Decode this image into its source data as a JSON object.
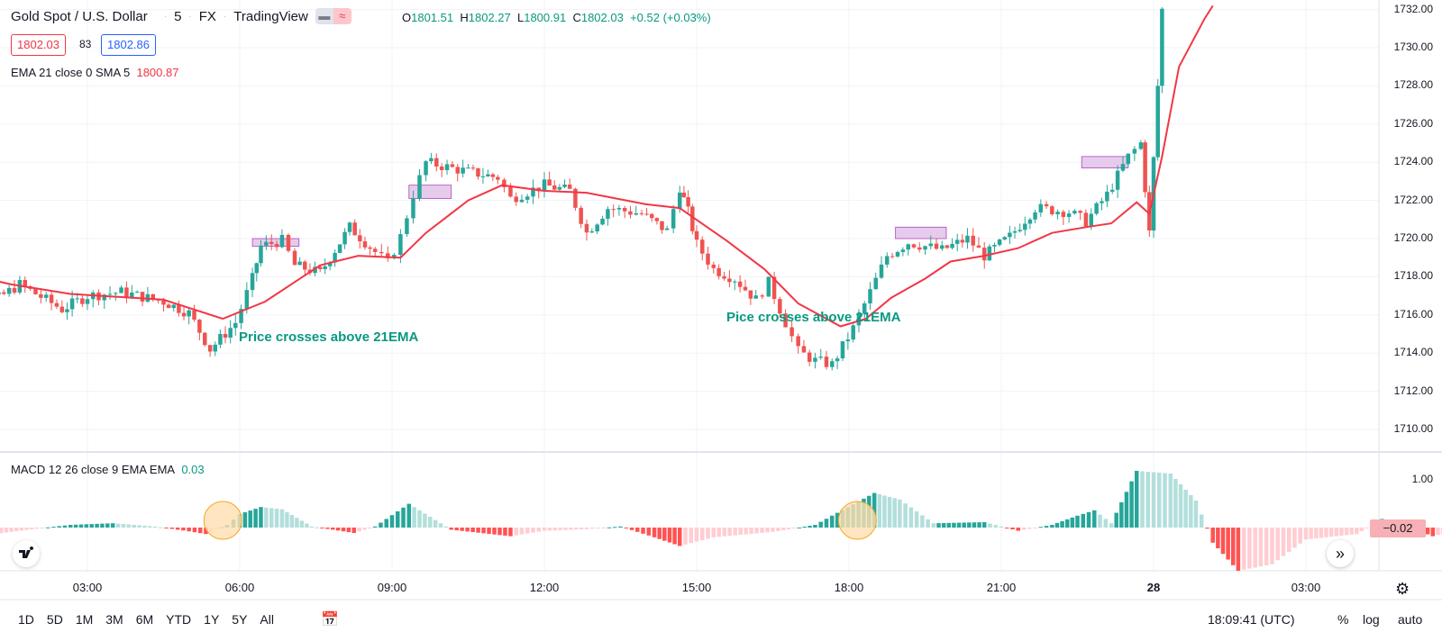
{
  "header": {
    "symbol": "Gold Spot / U.S. Dollar",
    "interval": "5",
    "exchange": "FX",
    "source": "TradingView",
    "compare_icon": "minus-icon",
    "wave_icon": "approx-icon",
    "ohlc": {
      "o_label": "O",
      "o": "1801.51",
      "h_label": "H",
      "h": "1802.27",
      "l_label": "L",
      "l": "1800.91",
      "c_label": "C",
      "c": "1802.03",
      "change": "+0.52 (+0.03%)"
    },
    "bid": "1802.03",
    "spread": "83",
    "ask": "1802.86"
  },
  "indicators": {
    "ema_label": "EMA 21 close 0 SMA 5",
    "ema_value": "1800.87",
    "macd_label": "MACD 12 26 close 9 EMA EMA",
    "macd_value": "0.03",
    "macd_last_tag": "−0.02"
  },
  "annotations": {
    "note_1": "Price crosses above 21EMA",
    "note_2": "Pice crosses above 21EMA"
  },
  "colors": {
    "up": "#26a69a",
    "down": "#ef5350",
    "ema": "#f23645",
    "macd_up_strong": "#26a69a",
    "macd_up_weak": "#b2dfdb",
    "macd_down_strong": "#ff5252",
    "macd_down_weak": "#ffcdd2",
    "highlight_box": "#e1bee7",
    "circle": "#ffe0b2"
  },
  "bottom_bar": {
    "ranges": [
      "1D",
      "5D",
      "1M",
      "3M",
      "6M",
      "YTD",
      "1Y",
      "5Y",
      "All"
    ],
    "time": "18:09:41 (UTC)",
    "percent": "%",
    "log": "log",
    "auto": "auto",
    "calendar_icon": "calendar-icon",
    "gear_icon": "gear-icon",
    "logo_icon": "tradingview-logo-icon",
    "scroll_icon": "double-chevron-right-icon"
  },
  "chart_data": {
    "type": "candlestick",
    "title": "Gold Spot / U.S. Dollar",
    "x_ticks": [
      "03:00",
      "06:00",
      "09:00",
      "12:00",
      "15:00",
      "18:00",
      "21:00",
      "28",
      "03:00"
    ],
    "y_ticks": [
      "1710.00",
      "1712.00",
      "1714.00",
      "1716.00",
      "1718.00",
      "1720.00",
      "1722.00",
      "1724.00",
      "1726.00",
      "1728.00",
      "1730.00",
      "1732.00"
    ],
    "ylim": [
      1709.2,
      1732.5
    ],
    "macd_ticks": [
      "1.00"
    ],
    "price_path": [
      {
        "t": "00:00",
        "p": 1718.0
      },
      {
        "t": "00:30",
        "p": 1717.3
      },
      {
        "t": "01:15",
        "p": 1716.9
      },
      {
        "t": "01:40",
        "p": 1717.6
      },
      {
        "t": "02:30",
        "p": 1716.3
      },
      {
        "t": "03:00",
        "p": 1717.0
      },
      {
        "t": "03:40",
        "p": 1717.2
      },
      {
        "t": "04:30",
        "p": 1716.7
      },
      {
        "t": "05:00",
        "p": 1716.1
      },
      {
        "t": "05:25",
        "p": 1714.2
      },
      {
        "t": "05:55",
        "p": 1715.6
      },
      {
        "t": "06:15",
        "p": 1717.9
      },
      {
        "t": "06:25",
        "p": 1719.6
      },
      {
        "t": "06:50",
        "p": 1719.9
      },
      {
        "t": "07:05",
        "p": 1718.6
      },
      {
        "t": "07:35",
        "p": 1718.2
      },
      {
        "t": "08:10",
        "p": 1720.6
      },
      {
        "t": "08:40",
        "p": 1719.3
      },
      {
        "t": "08:55",
        "p": 1718.7
      },
      {
        "t": "09:10",
        "p": 1720.1
      },
      {
        "t": "09:25",
        "p": 1722.3
      },
      {
        "t": "09:40",
        "p": 1724.0
      },
      {
        "t": "10:30",
        "p": 1723.5
      },
      {
        "t": "11:05",
        "p": 1723.2
      },
      {
        "t": "11:20",
        "p": 1722.1
      },
      {
        "t": "12:00",
        "p": 1722.8
      },
      {
        "t": "12:30",
        "p": 1722.5
      },
      {
        "t": "12:50",
        "p": 1720.3
      },
      {
        "t": "13:15",
        "p": 1721.6
      },
      {
        "t": "13:55",
        "p": 1721.3
      },
      {
        "t": "14:25",
        "p": 1720.4
      },
      {
        "t": "14:40",
        "p": 1722.7
      },
      {
        "t": "14:50",
        "p": 1721.4
      },
      {
        "t": "15:00",
        "p": 1719.7
      },
      {
        "t": "15:20",
        "p": 1718.4
      },
      {
        "t": "15:45",
        "p": 1717.9
      },
      {
        "t": "16:10",
        "p": 1716.8
      },
      {
        "t": "16:25",
        "p": 1717.7
      },
      {
        "t": "16:45",
        "p": 1715.6
      },
      {
        "t": "17:00",
        "p": 1714.1
      },
      {
        "t": "17:20",
        "p": 1713.6
      },
      {
        "t": "17:40",
        "p": 1713.4
      },
      {
        "t": "18:05",
        "p": 1715.3
      },
      {
        "t": "18:25",
        "p": 1717.2
      },
      {
        "t": "18:45",
        "p": 1719.1
      },
      {
        "t": "19:10",
        "p": 1719.8
      },
      {
        "t": "19:50",
        "p": 1719.4
      },
      {
        "t": "20:20",
        "p": 1720.0
      },
      {
        "t": "20:40",
        "p": 1719.1
      },
      {
        "t": "21:10",
        "p": 1720.1
      },
      {
        "t": "21:40",
        "p": 1721.6
      },
      {
        "t": "22:20",
        "p": 1721.4
      },
      {
        "t": "22:40",
        "p": 1720.9
      },
      {
        "t": "23:05",
        "p": 1722.3
      },
      {
        "t": "23:30",
        "p": 1724.3
      },
      {
        "t": "23:45",
        "p": 1725.0
      },
      {
        "t": "23:55",
        "p": 1720.3
      },
      {
        "t": "00:05",
        "p": 1728.0
      },
      {
        "t": "00:10",
        "p": 1732.0
      }
    ],
    "ema_path": [
      {
        "t": "00:00",
        "p": 1718.5
      },
      {
        "t": "01:30",
        "p": 1717.6
      },
      {
        "t": "02:40",
        "p": 1717.1
      },
      {
        "t": "04:30",
        "p": 1716.8
      },
      {
        "t": "05:40",
        "p": 1715.8
      },
      {
        "t": "06:30",
        "p": 1716.7
      },
      {
        "t": "07:35",
        "p": 1718.6
      },
      {
        "t": "08:20",
        "p": 1719.1
      },
      {
        "t": "09:10",
        "p": 1719.0
      },
      {
        "t": "09:40",
        "p": 1720.3
      },
      {
        "t": "10:30",
        "p": 1722.0
      },
      {
        "t": "11:10",
        "p": 1722.8
      },
      {
        "t": "12:00",
        "p": 1722.5
      },
      {
        "t": "12:50",
        "p": 1722.4
      },
      {
        "t": "14:00",
        "p": 1721.8
      },
      {
        "t": "14:40",
        "p": 1721.6
      },
      {
        "t": "15:35",
        "p": 1719.9
      },
      {
        "t": "16:20",
        "p": 1718.4
      },
      {
        "t": "17:00",
        "p": 1716.6
      },
      {
        "t": "17:50",
        "p": 1715.4
      },
      {
        "t": "18:20",
        "p": 1715.8
      },
      {
        "t": "18:50",
        "p": 1716.9
      },
      {
        "t": "19:30",
        "p": 1717.9
      },
      {
        "t": "20:00",
        "p": 1718.8
      },
      {
        "t": "20:40",
        "p": 1719.1
      },
      {
        "t": "21:20",
        "p": 1719.5
      },
      {
        "t": "22:00",
        "p": 1720.3
      },
      {
        "t": "22:40",
        "p": 1720.6
      },
      {
        "t": "23:10",
        "p": 1720.8
      },
      {
        "t": "23:40",
        "p": 1721.9
      },
      {
        "t": "23:55",
        "p": 1721.3
      },
      {
        "t": "00:10",
        "p": 1724.3
      },
      {
        "t": "00:30",
        "p": 1729.0
      },
      {
        "t": "01:00",
        "p": 1731.5
      },
      {
        "t": "01:10",
        "p": 1732.2
      }
    ],
    "macd_histogram_envelope": [
      {
        "t": "00:00",
        "v": -0.06
      },
      {
        "t": "01:00",
        "v": -0.14
      },
      {
        "t": "02:00",
        "v": -0.02
      },
      {
        "t": "02:40",
        "v": 0.05
      },
      {
        "t": "03:30",
        "v": 0.08
      },
      {
        "t": "04:20",
        "v": 0.02
      },
      {
        "t": "05:00",
        "v": -0.07
      },
      {
        "t": "05:20",
        "v": -0.12
      },
      {
        "t": "05:45",
        "v": 0.05
      },
      {
        "t": "06:00",
        "v": 0.25
      },
      {
        "t": "06:25",
        "v": 0.38
      },
      {
        "t": "06:50",
        "v": 0.34
      },
      {
        "t": "07:25",
        "v": 0.02
      },
      {
        "t": "08:15",
        "v": -0.1
      },
      {
        "t": "08:40",
        "v": 0.02
      },
      {
        "t": "09:20",
        "v": 0.44
      },
      {
        "t": "09:45",
        "v": 0.2
      },
      {
        "t": "10:10",
        "v": -0.04
      },
      {
        "t": "11:20",
        "v": -0.16
      },
      {
        "t": "12:00",
        "v": -0.06
      },
      {
        "t": "12:50",
        "v": -0.03
      },
      {
        "t": "13:30",
        "v": 0.02
      },
      {
        "t": "14:10",
        "v": -0.18
      },
      {
        "t": "14:40",
        "v": -0.34
      },
      {
        "t": "15:20",
        "v": -0.18
      },
      {
        "t": "16:30",
        "v": -0.08
      },
      {
        "t": "17:20",
        "v": 0.05
      },
      {
        "t": "17:40",
        "v": 0.22
      },
      {
        "t": "18:30",
        "v": 0.64
      },
      {
        "t": "19:00",
        "v": 0.52
      },
      {
        "t": "19:40",
        "v": 0.08
      },
      {
        "t": "20:40",
        "v": 0.1
      },
      {
        "t": "21:20",
        "v": -0.06
      },
      {
        "t": "22:00",
        "v": 0.05
      },
      {
        "t": "22:30",
        "v": 0.22
      },
      {
        "t": "22:50",
        "v": 0.32
      },
      {
        "t": "23:10",
        "v": 0.08
      },
      {
        "t": "23:40",
        "v": 1.05
      },
      {
        "t": "00:20",
        "v": 1.0
      },
      {
        "t": "00:50",
        "v": 0.5
      },
      {
        "t": "01:10",
        "v": -0.28
      },
      {
        "t": "01:40",
        "v": -0.8
      },
      {
        "t": "02:20",
        "v": -0.68
      },
      {
        "t": "03:00",
        "v": -0.22
      },
      {
        "t": "04:00",
        "v": -0.12
      },
      {
        "t": "04:30",
        "v": 0.16
      },
      {
        "t": "05:00",
        "v": 0.02
      },
      {
        "t": "05:30",
        "v": -0.16
      },
      {
        "t": "06:00",
        "v": -0.05
      },
      {
        "t": "06:30",
        "v": 0.16
      },
      {
        "t": "07:00",
        "v": -0.02
      },
      {
        "t": "07:30",
        "v": -0.42
      },
      {
        "t": "08:00",
        "v": -0.1
      },
      {
        "t": "08:30",
        "v": 0.2
      },
      {
        "t": "09:00",
        "v": 0.05
      },
      {
        "t": "09:40",
        "v": -0.05
      },
      {
        "t": "10:10",
        "v": -0.02
      }
    ],
    "highlight_zones": [
      {
        "t0": "06:15",
        "t1": "07:10",
        "p0": 1719.6,
        "p1": 1720.0
      },
      {
        "t0": "09:20",
        "t1": "10:10",
        "p0": 1722.1,
        "p1": 1722.8
      },
      {
        "t0": "18:55",
        "t1": "19:55",
        "p0": 1720.0,
        "p1": 1720.6
      },
      {
        "t0": "22:35",
        "t1": "23:30",
        "p0": 1723.7,
        "p1": 1724.3
      }
    ],
    "macd_circles": [
      "05:40",
      "18:10"
    ]
  }
}
